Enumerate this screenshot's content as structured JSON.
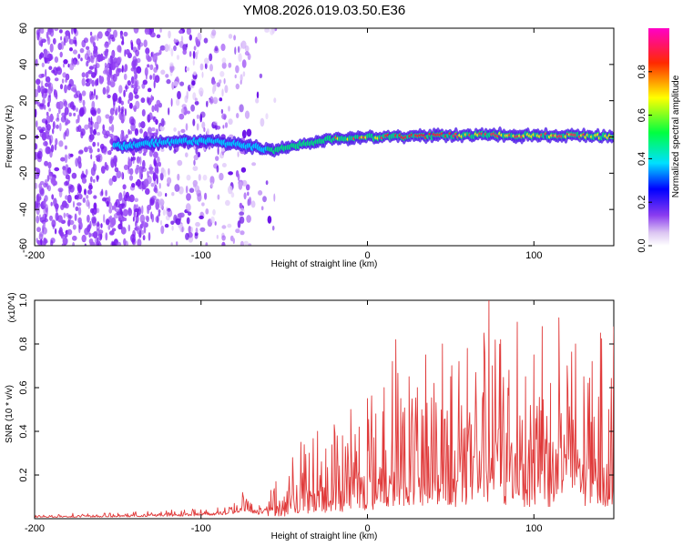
{
  "page_title": "YM08.2026.019.03.50.E36",
  "chart_data": [
    {
      "type": "heatmap",
      "title": "YM08.2026.019.03.50.E36",
      "xlabel": "Height of straight line (km)",
      "ylabel": "Frequency (Hz)",
      "xlim": [
        -200,
        148
      ],
      "ylim": [
        -60,
        60
      ],
      "x_ticks": [
        "-200",
        "-100",
        "0",
        "100"
      ],
      "y_ticks": [
        "-60",
        "-40",
        "-20",
        "0",
        "20",
        "40",
        "60"
      ],
      "colorbar": {
        "label": "Normalized spectral amplitude",
        "range": [
          0,
          1
        ],
        "ticks": [
          "0.0",
          "0.2",
          "0.4",
          "0.6",
          "0.8"
        ]
      },
      "features": [
        {
          "name": "scattered noise",
          "x_range": [
            -200,
            -58
          ],
          "freq_range": [
            -60,
            60
          ]
        },
        {
          "name": "ridge",
          "x": [
            -150,
            -125,
            -100,
            -80,
            -65,
            -57,
            -40,
            -20,
            0,
            20,
            50,
            80,
            110,
            148
          ],
          "freq": [
            -5,
            -3,
            -2,
            -4,
            -6,
            -8,
            -4,
            -1,
            0,
            0,
            1,
            1,
            1,
            0
          ]
        }
      ]
    },
    {
      "type": "line",
      "xlabel": "Height of straight line (km)",
      "ylabel": "SNR (10 * v/v)",
      "y_multiplier": "(x10^4)",
      "xlim": [
        -200,
        148
      ],
      "ylim": [
        0,
        1.0
      ],
      "x_ticks": [
        "-200",
        "-100",
        "0",
        "100"
      ],
      "y_ticks": [
        "0.2",
        "0.4",
        "0.6",
        "0.8",
        "1.0"
      ],
      "series_color": "#e03a3a",
      "series": [
        {
          "name": "SNR",
          "x": [
            -200,
            -150,
            -110,
            -90,
            -80,
            -75,
            -65,
            -58,
            -55,
            -50,
            -45,
            -40,
            -35,
            -30,
            -25,
            -20,
            -15,
            -10,
            -5,
            0,
            5,
            10,
            15,
            17,
            20,
            25,
            30,
            35,
            40,
            45,
            50,
            55,
            60,
            65,
            70,
            73,
            75,
            80,
            85,
            90,
            95,
            100,
            105,
            110,
            115,
            120,
            125,
            130,
            135,
            140,
            145,
            148
          ],
          "values": [
            0.02,
            0.025,
            0.04,
            0.05,
            0.07,
            0.12,
            0.06,
            0.13,
            0.17,
            0.1,
            0.28,
            0.35,
            0.3,
            0.4,
            0.32,
            0.43,
            0.38,
            0.5,
            0.42,
            0.55,
            0.48,
            0.6,
            0.72,
            0.82,
            0.55,
            0.65,
            0.6,
            0.75,
            0.62,
            0.8,
            0.65,
            0.72,
            0.78,
            0.62,
            0.85,
            1.0,
            0.7,
            0.82,
            0.68,
            0.9,
            0.65,
            0.75,
            0.88,
            0.62,
            0.92,
            0.7,
            0.8,
            0.65,
            0.72,
            0.85,
            0.5,
            0.88
          ]
        }
      ]
    }
  ]
}
